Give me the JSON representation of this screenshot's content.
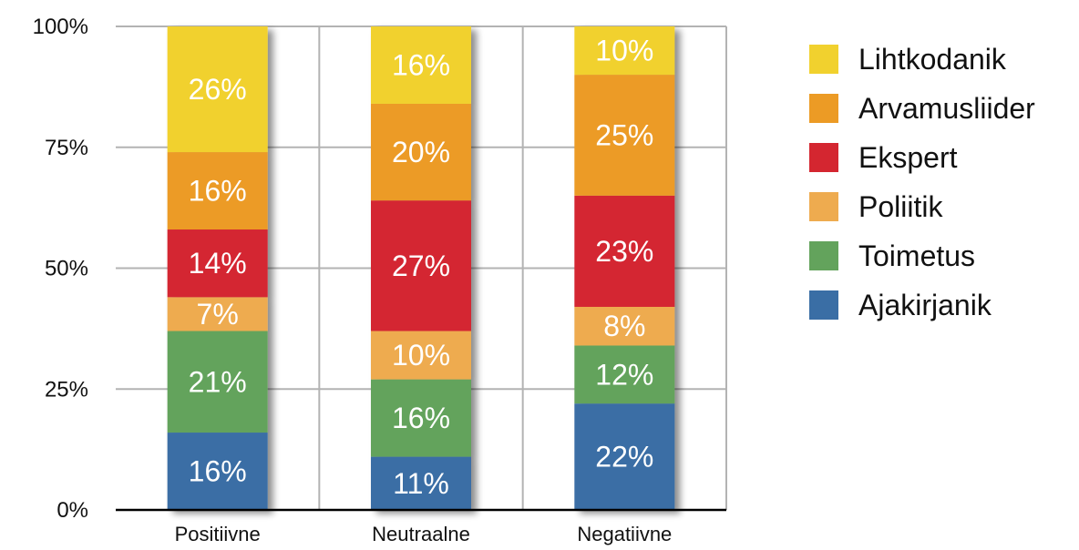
{
  "chart_data": {
    "type": "bar",
    "stacked": true,
    "categories": [
      "Positiivne",
      "Neutraalne",
      "Negatiivne"
    ],
    "series": [
      {
        "name": "Ajakirjanik",
        "color": "#3a6ea5",
        "values": [
          16,
          11,
          22
        ]
      },
      {
        "name": "Toimetus",
        "color": "#63a35c",
        "values": [
          21,
          16,
          12
        ]
      },
      {
        "name": "Poliitik",
        "color": "#eeab4f",
        "values": [
          7,
          10,
          8
        ]
      },
      {
        "name": "Ekspert",
        "color": "#d42630",
        "values": [
          14,
          27,
          23
        ]
      },
      {
        "name": "Arvamusliider",
        "color": "#ec9b25",
        "values": [
          16,
          20,
          25
        ]
      },
      {
        "name": "Lihtkodanik",
        "color": "#f1d12e",
        "values": [
          26,
          16,
          10
        ]
      }
    ],
    "ylim": [
      0,
      100
    ],
    "yticks": [
      "0%",
      "25%",
      "50%",
      "75%",
      "100%"
    ],
    "grid": true,
    "legend_position": "right",
    "legend_order": [
      "Lihtkodanik",
      "Arvamusliider",
      "Ekspert",
      "Poliitik",
      "Toimetus",
      "Ajakirjanik"
    ]
  }
}
